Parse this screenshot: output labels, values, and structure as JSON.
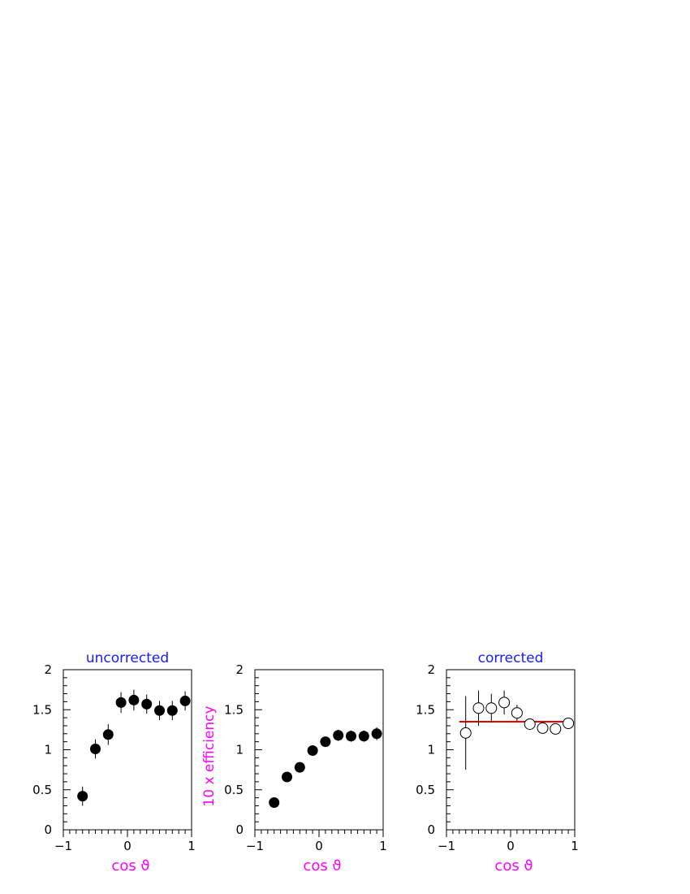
{
  "chart_data": [
    {
      "type": "scatter",
      "title": "uncorrected",
      "xlabel": "cos ϑ",
      "ylabel": "",
      "xlim": [
        -1,
        1
      ],
      "ylim": [
        0,
        2
      ],
      "xticks": [
        "−1",
        "0",
        "1"
      ],
      "yticks": [
        "0",
        "0.5",
        "1",
        "1.5",
        "2"
      ],
      "marker": "filled-circle",
      "marker_color": "#000000",
      "points": [
        {
          "x": -0.7,
          "y": 0.42,
          "err": 0.12
        },
        {
          "x": -0.5,
          "y": 1.01,
          "err": 0.12
        },
        {
          "x": -0.3,
          "y": 1.19,
          "err": 0.13
        },
        {
          "x": -0.1,
          "y": 1.59,
          "err": 0.13
        },
        {
          "x": 0.1,
          "y": 1.62,
          "err": 0.13
        },
        {
          "x": 0.3,
          "y": 1.57,
          "err": 0.12
        },
        {
          "x": 0.5,
          "y": 1.49,
          "err": 0.12
        },
        {
          "x": 0.7,
          "y": 1.49,
          "err": 0.12
        },
        {
          "x": 0.9,
          "y": 1.61,
          "err": 0.12
        }
      ]
    },
    {
      "type": "scatter",
      "title": "",
      "xlabel": "cos ϑ",
      "ylabel": "10 x efficiency",
      "xlim": [
        -1,
        1
      ],
      "ylim": [
        0,
        2
      ],
      "xticks": [
        "−1",
        "0",
        "1"
      ],
      "yticks": [
        "0",
        "0.5",
        "1",
        "1.5",
        "2"
      ],
      "marker": "filled-circle",
      "marker_color": "#000000",
      "points": [
        {
          "x": -0.7,
          "y": 0.34,
          "err": 0.03
        },
        {
          "x": -0.5,
          "y": 0.66,
          "err": 0.04
        },
        {
          "x": -0.3,
          "y": 0.78,
          "err": 0.04
        },
        {
          "x": -0.1,
          "y": 0.99,
          "err": 0.05
        },
        {
          "x": 0.1,
          "y": 1.1,
          "err": 0.06
        },
        {
          "x": 0.3,
          "y": 1.18,
          "err": 0.07
        },
        {
          "x": 0.5,
          "y": 1.17,
          "err": 0.07
        },
        {
          "x": 0.7,
          "y": 1.17,
          "err": 0.07
        },
        {
          "x": 0.9,
          "y": 1.2,
          "err": 0.08
        }
      ]
    },
    {
      "type": "scatter",
      "title": "corrected",
      "xlabel": "cos ϑ",
      "ylabel": "",
      "xlim": [
        -1,
        1
      ],
      "ylim": [
        0,
        2
      ],
      "xticks": [
        "−1",
        "0",
        "1"
      ],
      "yticks": [
        "0",
        "0.5",
        "1",
        "1.5",
        "2"
      ],
      "marker": "open-circle",
      "marker_color": "#000000",
      "fit_line": {
        "x0": -0.8,
        "x1": 0.9,
        "y": 1.35,
        "color": "#e00000"
      },
      "points": [
        {
          "x": -0.7,
          "y": 1.21,
          "err": 0.46
        },
        {
          "x": -0.5,
          "y": 1.52,
          "err": 0.22
        },
        {
          "x": -0.3,
          "y": 1.52,
          "err": 0.18
        },
        {
          "x": -0.1,
          "y": 1.59,
          "err": 0.15
        },
        {
          "x": 0.1,
          "y": 1.46,
          "err": 0.1
        },
        {
          "x": 0.3,
          "y": 1.32,
          "err": 0.07
        },
        {
          "x": 0.5,
          "y": 1.27,
          "err": 0.06
        },
        {
          "x": 0.7,
          "y": 1.26,
          "err": 0.06
        },
        {
          "x": 0.9,
          "y": 1.33,
          "err": 0.06
        }
      ]
    }
  ]
}
